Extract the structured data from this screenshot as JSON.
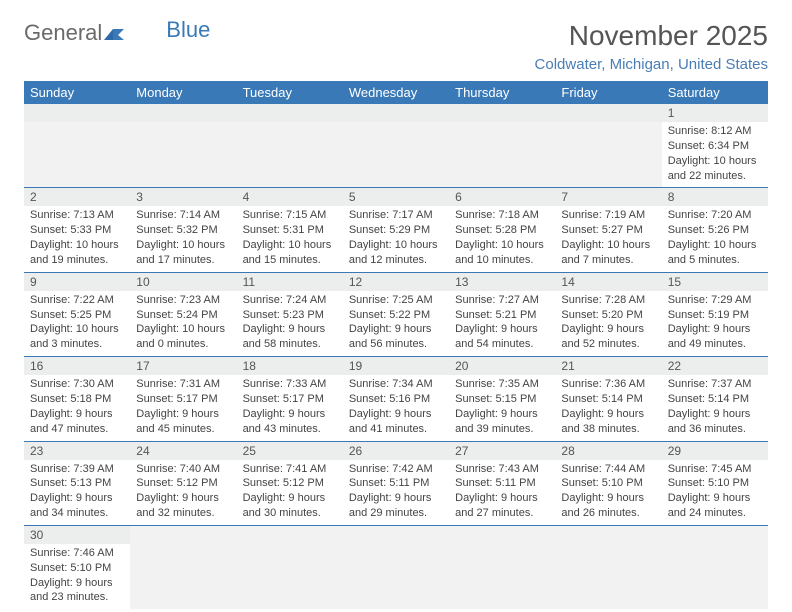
{
  "logo": {
    "text_general": "General",
    "text_blue": "Blue"
  },
  "title": "November 2025",
  "location": "Coldwater, Michigan, United States",
  "day_headers": [
    "Sunday",
    "Monday",
    "Tuesday",
    "Wednesday",
    "Thursday",
    "Friday",
    "Saturday"
  ],
  "colors": {
    "header_bg": "#3a79b7",
    "header_text": "#ffffff",
    "daynum_bg": "#eceded",
    "border": "#3a79b7",
    "location": "#4a7db5"
  },
  "weeks": [
    [
      null,
      null,
      null,
      null,
      null,
      null,
      {
        "n": "1",
        "sunrise": "Sunrise: 8:12 AM",
        "sunset": "Sunset: 6:34 PM",
        "daylight": "Daylight: 10 hours and 22 minutes."
      }
    ],
    [
      {
        "n": "2",
        "sunrise": "Sunrise: 7:13 AM",
        "sunset": "Sunset: 5:33 PM",
        "daylight": "Daylight: 10 hours and 19 minutes."
      },
      {
        "n": "3",
        "sunrise": "Sunrise: 7:14 AM",
        "sunset": "Sunset: 5:32 PM",
        "daylight": "Daylight: 10 hours and 17 minutes."
      },
      {
        "n": "4",
        "sunrise": "Sunrise: 7:15 AM",
        "sunset": "Sunset: 5:31 PM",
        "daylight": "Daylight: 10 hours and 15 minutes."
      },
      {
        "n": "5",
        "sunrise": "Sunrise: 7:17 AM",
        "sunset": "Sunset: 5:29 PM",
        "daylight": "Daylight: 10 hours and 12 minutes."
      },
      {
        "n": "6",
        "sunrise": "Sunrise: 7:18 AM",
        "sunset": "Sunset: 5:28 PM",
        "daylight": "Daylight: 10 hours and 10 minutes."
      },
      {
        "n": "7",
        "sunrise": "Sunrise: 7:19 AM",
        "sunset": "Sunset: 5:27 PM",
        "daylight": "Daylight: 10 hours and 7 minutes."
      },
      {
        "n": "8",
        "sunrise": "Sunrise: 7:20 AM",
        "sunset": "Sunset: 5:26 PM",
        "daylight": "Daylight: 10 hours and 5 minutes."
      }
    ],
    [
      {
        "n": "9",
        "sunrise": "Sunrise: 7:22 AM",
        "sunset": "Sunset: 5:25 PM",
        "daylight": "Daylight: 10 hours and 3 minutes."
      },
      {
        "n": "10",
        "sunrise": "Sunrise: 7:23 AM",
        "sunset": "Sunset: 5:24 PM",
        "daylight": "Daylight: 10 hours and 0 minutes."
      },
      {
        "n": "11",
        "sunrise": "Sunrise: 7:24 AM",
        "sunset": "Sunset: 5:23 PM",
        "daylight": "Daylight: 9 hours and 58 minutes."
      },
      {
        "n": "12",
        "sunrise": "Sunrise: 7:25 AM",
        "sunset": "Sunset: 5:22 PM",
        "daylight": "Daylight: 9 hours and 56 minutes."
      },
      {
        "n": "13",
        "sunrise": "Sunrise: 7:27 AM",
        "sunset": "Sunset: 5:21 PM",
        "daylight": "Daylight: 9 hours and 54 minutes."
      },
      {
        "n": "14",
        "sunrise": "Sunrise: 7:28 AM",
        "sunset": "Sunset: 5:20 PM",
        "daylight": "Daylight: 9 hours and 52 minutes."
      },
      {
        "n": "15",
        "sunrise": "Sunrise: 7:29 AM",
        "sunset": "Sunset: 5:19 PM",
        "daylight": "Daylight: 9 hours and 49 minutes."
      }
    ],
    [
      {
        "n": "16",
        "sunrise": "Sunrise: 7:30 AM",
        "sunset": "Sunset: 5:18 PM",
        "daylight": "Daylight: 9 hours and 47 minutes."
      },
      {
        "n": "17",
        "sunrise": "Sunrise: 7:31 AM",
        "sunset": "Sunset: 5:17 PM",
        "daylight": "Daylight: 9 hours and 45 minutes."
      },
      {
        "n": "18",
        "sunrise": "Sunrise: 7:33 AM",
        "sunset": "Sunset: 5:17 PM",
        "daylight": "Daylight: 9 hours and 43 minutes."
      },
      {
        "n": "19",
        "sunrise": "Sunrise: 7:34 AM",
        "sunset": "Sunset: 5:16 PM",
        "daylight": "Daylight: 9 hours and 41 minutes."
      },
      {
        "n": "20",
        "sunrise": "Sunrise: 7:35 AM",
        "sunset": "Sunset: 5:15 PM",
        "daylight": "Daylight: 9 hours and 39 minutes."
      },
      {
        "n": "21",
        "sunrise": "Sunrise: 7:36 AM",
        "sunset": "Sunset: 5:14 PM",
        "daylight": "Daylight: 9 hours and 38 minutes."
      },
      {
        "n": "22",
        "sunrise": "Sunrise: 7:37 AM",
        "sunset": "Sunset: 5:14 PM",
        "daylight": "Daylight: 9 hours and 36 minutes."
      }
    ],
    [
      {
        "n": "23",
        "sunrise": "Sunrise: 7:39 AM",
        "sunset": "Sunset: 5:13 PM",
        "daylight": "Daylight: 9 hours and 34 minutes."
      },
      {
        "n": "24",
        "sunrise": "Sunrise: 7:40 AM",
        "sunset": "Sunset: 5:12 PM",
        "daylight": "Daylight: 9 hours and 32 minutes."
      },
      {
        "n": "25",
        "sunrise": "Sunrise: 7:41 AM",
        "sunset": "Sunset: 5:12 PM",
        "daylight": "Daylight: 9 hours and 30 minutes."
      },
      {
        "n": "26",
        "sunrise": "Sunrise: 7:42 AM",
        "sunset": "Sunset: 5:11 PM",
        "daylight": "Daylight: 9 hours and 29 minutes."
      },
      {
        "n": "27",
        "sunrise": "Sunrise: 7:43 AM",
        "sunset": "Sunset: 5:11 PM",
        "daylight": "Daylight: 9 hours and 27 minutes."
      },
      {
        "n": "28",
        "sunrise": "Sunrise: 7:44 AM",
        "sunset": "Sunset: 5:10 PM",
        "daylight": "Daylight: 9 hours and 26 minutes."
      },
      {
        "n": "29",
        "sunrise": "Sunrise: 7:45 AM",
        "sunset": "Sunset: 5:10 PM",
        "daylight": "Daylight: 9 hours and 24 minutes."
      }
    ],
    [
      {
        "n": "30",
        "sunrise": "Sunrise: 7:46 AM",
        "sunset": "Sunset: 5:10 PM",
        "daylight": "Daylight: 9 hours and 23 minutes."
      },
      null,
      null,
      null,
      null,
      null,
      null
    ]
  ]
}
